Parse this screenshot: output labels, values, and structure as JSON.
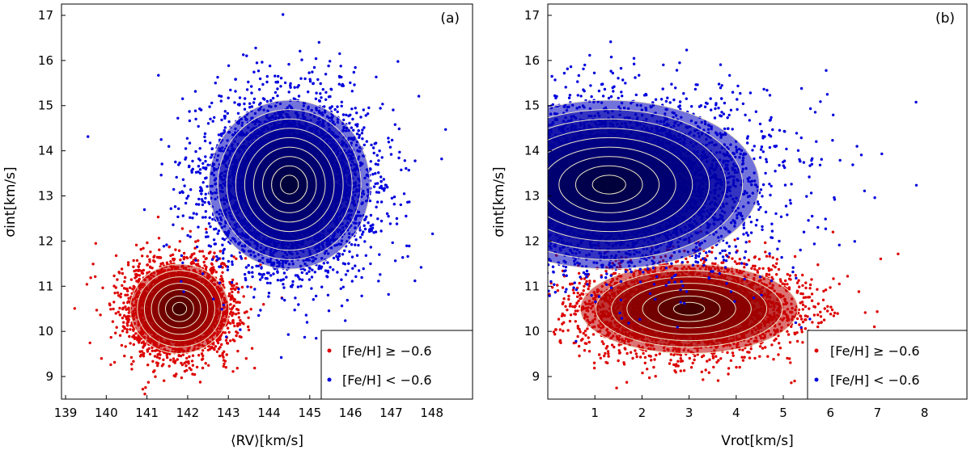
{
  "chart_data": [
    {
      "type": "scatter",
      "panel_tag": "(a)",
      "xlabel": "⟨RV⟩[km/s]",
      "ylabel": "σint[km/s]",
      "xlim": [
        138.9,
        149.0
      ],
      "ylim": [
        8.5,
        17.25
      ],
      "xticks": [
        139,
        140,
        141,
        142,
        143,
        144,
        145,
        146,
        147,
        148
      ],
      "yticks": [
        9,
        10,
        11,
        12,
        13,
        14,
        15,
        16,
        17
      ],
      "legend_position": "bottom-right",
      "series": [
        {
          "name": "[Fe/H] ≥ −0.6",
          "color": "#dd0000",
          "core_color": "#1a0000",
          "center": [
            141.8,
            10.5
          ],
          "spread": [
            0.55,
            0.45
          ],
          "points": 4200,
          "contour_levels": 7
        },
        {
          "name": "[Fe/H] < −0.6",
          "color": "#0000dd",
          "core_color": "#000018",
          "center": [
            144.5,
            13.25
          ],
          "spread": [
            0.9,
            0.85
          ],
          "points": 5200,
          "contour_levels": 9
        }
      ]
    },
    {
      "type": "scatter",
      "panel_tag": "(b)",
      "xlabel": "Vrot[km/s]",
      "ylabel": "σint[km/s]",
      "xlim": [
        0.0,
        8.9
      ],
      "ylim": [
        8.5,
        17.25
      ],
      "xticks": [
        1,
        2,
        3,
        4,
        5,
        6,
        7,
        8
      ],
      "yticks": [
        9,
        10,
        11,
        12,
        13,
        14,
        15,
        16,
        17
      ],
      "legend_position": "bottom-right",
      "series": [
        {
          "name": "[Fe/H] ≥ −0.6",
          "color": "#dd0000",
          "core_color": "#1a0000",
          "center": [
            3.0,
            10.5
          ],
          "spread": [
            1.05,
            0.45
          ],
          "points": 4200,
          "contour_levels": 7
        },
        {
          "name": "[Fe/H] < −0.6",
          "color": "#0000dd",
          "core_color": "#000018",
          "center": [
            1.3,
            13.25
          ],
          "spread": [
            1.45,
            0.85
          ],
          "points": 5200,
          "contour_levels": 9
        }
      ]
    }
  ]
}
